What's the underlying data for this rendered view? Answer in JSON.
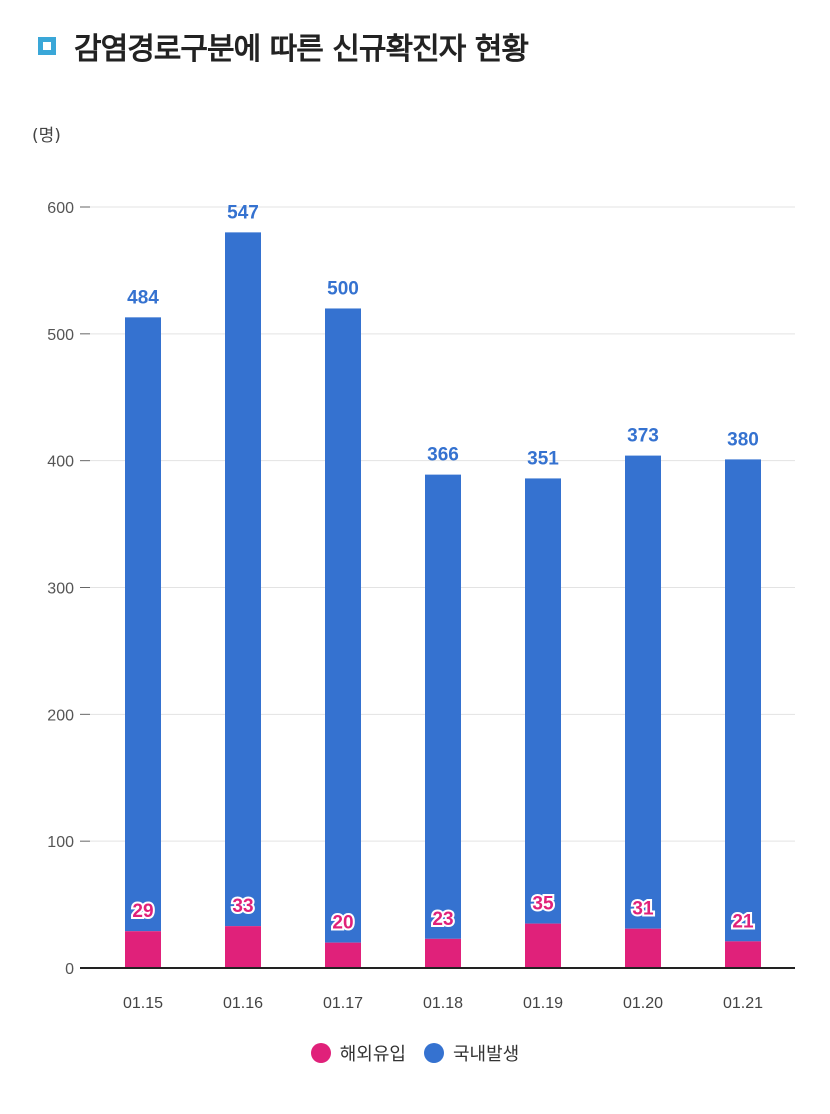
{
  "title": "감염경로구분에 따른 신규확진자 현황",
  "chart_data": {
    "type": "bar",
    "stacked": true,
    "title": "감염경로구분에 따른 신규확진자 현황",
    "unit_label": "(명)",
    "categories": [
      "01.15",
      "01.16",
      "01.17",
      "01.18",
      "01.19",
      "01.20",
      "01.21"
    ],
    "series": [
      {
        "name": "해외유입",
        "color": "#e0217a",
        "values": [
          29,
          33,
          20,
          23,
          35,
          31,
          21
        ]
      },
      {
        "name": "국내발생",
        "color": "#3572d0",
        "values": [
          484,
          547,
          500,
          366,
          351,
          373,
          380
        ]
      }
    ],
    "yticks": [
      0,
      100,
      200,
      300,
      400,
      500,
      600
    ],
    "ylim": [
      0,
      600
    ],
    "grid": true,
    "legend": "bottom-center"
  }
}
